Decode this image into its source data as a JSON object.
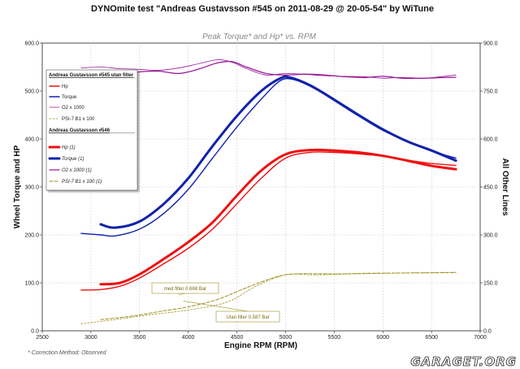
{
  "header": {
    "title": "DYNOmite test \"Andreas Gustavsson #545 on 2011-08-29 @ 20-05-54\" by WiTune",
    "subtitle": "Peak Torque* and Hp* vs. RPM"
  },
  "footer": {
    "footnote": "* Correction Method: Observed",
    "watermark": "GARAGET.ORG"
  },
  "colors": {
    "hp": "#ee1111",
    "torque": "#1122aa",
    "o2": "#9a1a9a",
    "psi": "#a09020"
  },
  "chart_data": {
    "type": "line",
    "title": "Peak Torque* and Hp* vs. RPM",
    "xlabel": "Engine RPM (RPM)",
    "ylabel": "Wheel Torque and HP",
    "y2label": "All Other Lines",
    "xlim": [
      2500,
      7000
    ],
    "ylim": [
      0,
      600
    ],
    "y2lim": [
      0,
      900
    ],
    "xticks": [
      2500,
      3000,
      3500,
      4000,
      4500,
      5000,
      5500,
      6000,
      6500,
      7000
    ],
    "yticks": [
      0,
      100,
      200,
      300,
      400,
      500,
      600
    ],
    "y2ticks": [
      0,
      150,
      300,
      450,
      600,
      750,
      900
    ],
    "xtick_labels": [
      "2500",
      "3000",
      "3500",
      "4000",
      "4500",
      "5000",
      "5500",
      "6000",
      "6500",
      "7000"
    ],
    "ytick_labels": [
      "0.0",
      "100.0",
      "200.0",
      "300.0",
      "400.0",
      "500.0",
      "600.0"
    ],
    "y2tick_labels": [
      "0.0",
      "150.0",
      "300.0",
      "450.0",
      "600.0",
      "750.0",
      "900.0"
    ],
    "series": [
      {
        "name": "Hp",
        "group": "run545",
        "axis": "left",
        "kind": "hp",
        "width": "thin",
        "x": [
          2900,
          3100,
          3300,
          3500,
          3750,
          4000,
          4250,
          4500,
          4750,
          5000,
          5250,
          5500,
          5750,
          6000,
          6250,
          6500,
          6750
        ],
        "y": [
          85,
          86,
          93,
          110,
          140,
          172,
          212,
          265,
          318,
          360,
          372,
          372,
          369,
          364,
          356,
          349,
          345
        ]
      },
      {
        "name": "Torque",
        "group": "run545",
        "axis": "left",
        "kind": "torque",
        "width": "thin",
        "x": [
          2900,
          3100,
          3250,
          3500,
          3750,
          4000,
          4250,
          4500,
          4750,
          4950,
          5100,
          5300,
          5500,
          5750,
          6000,
          6250,
          6500,
          6750
        ],
        "y": [
          203,
          200,
          198,
          212,
          245,
          295,
          360,
          425,
          483,
          522,
          523,
          505,
          480,
          448,
          418,
          395,
          375,
          360
        ]
      },
      {
        "name": "O2 x 1000",
        "group": "run545",
        "axis": "right",
        "kind": "o2",
        "width": "thin",
        "x": [
          2900,
          3100,
          3300,
          3500,
          3700,
          3900,
          4100,
          4300,
          4450,
          4600,
          4800,
          5000,
          5200,
          5400,
          5600,
          5800,
          6000,
          6200,
          6400,
          6600,
          6750
        ],
        "y": [
          822,
          825,
          820,
          818,
          815,
          822,
          835,
          848,
          840,
          820,
          800,
          805,
          802,
          798,
          796,
          795,
          790,
          793,
          790,
          795,
          800
        ]
      },
      {
        "name": "PSI-7 B1 x 100",
        "group": "run545",
        "axis": "right",
        "kind": "psi",
        "width": "thin",
        "x": [
          2900,
          3250,
          3600,
          4000,
          4400,
          4700,
          5000,
          5300,
          5700,
          6100,
          6500,
          6750
        ],
        "y": [
          22,
          35,
          50,
          65,
          90,
          140,
          175,
          175,
          178,
          180,
          182,
          183
        ]
      },
      {
        "name": "Hp (1)",
        "group": "run546",
        "axis": "left",
        "kind": "hp",
        "width": "thick",
        "x": [
          3100,
          3300,
          3500,
          3750,
          4000,
          4250,
          4500,
          4750,
          5000,
          5250,
          5500,
          5750,
          6000,
          6250,
          6500,
          6750
        ],
        "y": [
          97,
          100,
          118,
          150,
          185,
          226,
          282,
          334,
          368,
          377,
          376,
          372,
          365,
          355,
          344,
          337
        ]
      },
      {
        "name": "Torque (1)",
        "group": "run546",
        "axis": "left",
        "kind": "torque",
        "width": "thick",
        "x": [
          3100,
          3250,
          3500,
          3750,
          4000,
          4250,
          4500,
          4750,
          4950,
          5050,
          5250,
          5500,
          5750,
          6000,
          6250,
          6500,
          6750
        ],
        "y": [
          222,
          215,
          228,
          265,
          318,
          385,
          448,
          500,
          527,
          528,
          512,
          482,
          450,
          420,
          395,
          376,
          355
        ]
      },
      {
        "name": "O2 x 1000 (1)",
        "group": "run546",
        "axis": "right",
        "kind": "o2",
        "width": "thick",
        "x": [
          3100,
          3300,
          3500,
          3700,
          3900,
          4100,
          4300,
          4450,
          4600,
          4800,
          5000,
          5200,
          5400,
          5600,
          5800,
          6000,
          6200,
          6400,
          6600,
          6750
        ],
        "y": [
          798,
          800,
          810,
          812,
          805,
          818,
          838,
          842,
          825,
          805,
          800,
          803,
          800,
          795,
          792,
          796,
          790,
          790,
          792,
          793
        ]
      },
      {
        "name": "PSI-7 B1 x 100 (1)",
        "group": "run546",
        "axis": "right",
        "kind": "psi",
        "width": "thick",
        "x": [
          3100,
          3400,
          3700,
          4000,
          4300,
          4600,
          4900,
          5100,
          5500,
          5900,
          6300,
          6750
        ],
        "y": [
          35,
          45,
          60,
          75,
          98,
          135,
          168,
          178,
          178,
          180,
          181,
          182
        ]
      }
    ],
    "legend": {
      "position": "top-left",
      "groups": [
        {
          "heading": "Andreas Gustavsson #545 utan filter",
          "entries": [
            "Hp",
            "Torque",
            "O2 x 1000",
            "PSI-7 B1 x 100"
          ]
        },
        {
          "heading": "Andreas Gustavsson #546",
          "entries": [
            "Hp (1)",
            "Torque (1)",
            "O2 x 1000 (1)",
            "PSI-7 B1 x 100 (1)"
          ]
        }
      ]
    },
    "annotations": [
      {
        "text": "med filter 0.668 Bar",
        "rpm": 3900,
        "value": 75
      },
      {
        "text": "Utan filter 0.587 Bar",
        "rpm": 3950,
        "value": 62
      }
    ]
  }
}
